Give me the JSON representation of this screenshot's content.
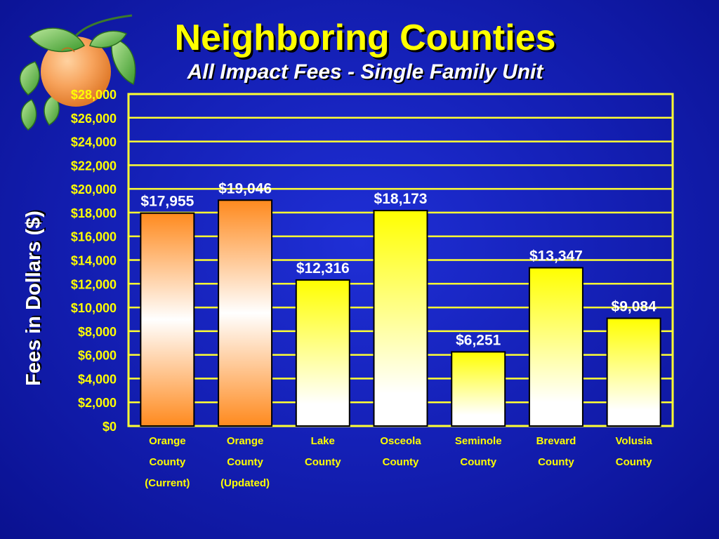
{
  "slide": {
    "title": "Neighboring Counties",
    "subtitle": "All Impact Fees - Single Family Unit"
  },
  "colors": {
    "background": "#1521b8",
    "title": "#ffff00",
    "grid": "#ffff33",
    "axis_text": "#ffff00",
    "data_label": "#ffffff",
    "orange_bar": "#ff8a1e",
    "yellow_bar": "#ffff00"
  },
  "icons": {
    "logo": "orange-fruit-icon"
  },
  "chart_data": {
    "type": "bar",
    "title": "Neighboring Counties",
    "subtitle": "All Impact Fees - Single Family Unit",
    "ylabel": "Fees in Dollars ($)",
    "xlabel": "",
    "ylim": [
      0,
      28000
    ],
    "yticks": [
      "$0",
      "$2,000",
      "$4,000",
      "$6,000",
      "$8,000",
      "$10,000",
      "$12,000",
      "$14,000",
      "$16,000",
      "$18,000",
      "$20,000",
      "$22,000",
      "$24,000",
      "$26,000",
      "$28,000"
    ],
    "grid": true,
    "categories": [
      [
        "Orange",
        "County",
        "(Current)"
      ],
      [
        "Orange",
        "County",
        "(Updated)"
      ],
      [
        "Lake",
        "County"
      ],
      [
        "Osceola",
        "County"
      ],
      [
        "Seminole",
        "County"
      ],
      [
        "Brevard",
        "County"
      ],
      [
        "Volusia",
        "County"
      ]
    ],
    "values": [
      17955,
      19046,
      12316,
      18173,
      6251,
      13347,
      9084
    ],
    "data_labels": [
      "$17,955",
      "$19,046",
      "$12,316",
      "$18,173",
      "$6,251",
      "$13,347",
      "$9,084"
    ],
    "bar_colors": [
      "orange",
      "orange",
      "yellow",
      "yellow",
      "yellow",
      "yellow",
      "yellow"
    ]
  }
}
